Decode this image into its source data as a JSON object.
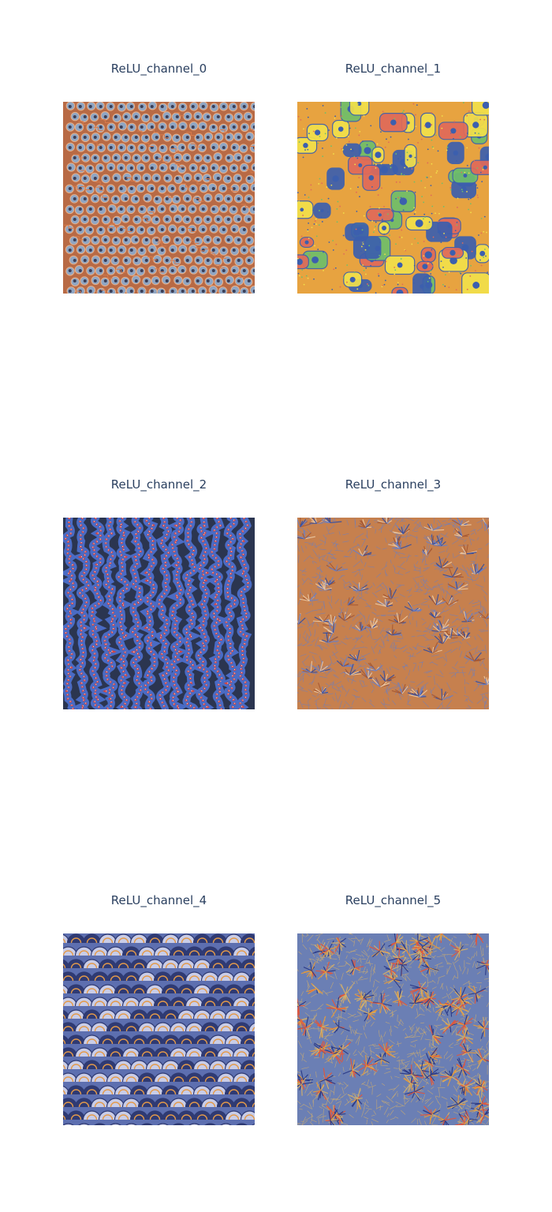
{
  "figure": {
    "panels": [
      {
        "title": "ReLU_channel_0",
        "image": "feature-visualization of ReLU channel 0: rows of blue-grey dotted circles on a rust-orange background with maze-like lines",
        "palette": {
          "base": "#b86a45",
          "a": "#8fa6c4",
          "b": "#3b3f58",
          "c": "#e7b08a",
          "d": "#d97a4a"
        }
      },
      {
        "title": "ReLU_channel_1",
        "image": "feature-visualization of ReLU channel 1: colourful yellow, orange, blue and green cell-like clusters with small spiky blobs",
        "palette": {
          "base": "#e7a340",
          "a": "#f2e04a",
          "b": "#3c5fae",
          "c": "#e06a5a",
          "d": "#6fbf6a"
        }
      },
      {
        "title": "ReLU_channel_2",
        "image": "feature-visualization of ReLU channel 2: wavy worm-like blue and red striped ridges on dark background",
        "palette": {
          "base": "#2b3550",
          "a": "#4a6bc4",
          "b": "#d8433c",
          "c": "#e9eef8",
          "d": "#7f93c8"
        }
      },
      {
        "title": "ReLU_channel_3",
        "image": "feature-visualization of ReLU channel 3: dense orange hair-like strands with blue feathery fan shapes",
        "palette": {
          "base": "#c6804e",
          "a": "#3b4f9a",
          "b": "#e9c49e",
          "c": "#6d7fc0",
          "d": "#a85a34"
        }
      },
      {
        "title": "ReLU_channel_4",
        "image": "feature-visualization of ReLU channel 4: overlapping blue and grey shell-like arcs with orange fibrous fills",
        "palette": {
          "base": "#5d6fb0",
          "a": "#c9cde8",
          "b": "#e39a4a",
          "c": "#2f3a73",
          "d": "#d6703c"
        }
      },
      {
        "title": "ReLU_channel_5",
        "image": "feature-visualization of ReLU channel 5: star-burst orange and blue spiky rays on a blue-grey background",
        "palette": {
          "base": "#6b7fb4",
          "a": "#e59a3a",
          "b": "#2c3a86",
          "c": "#d4b06a",
          "d": "#e2563a"
        }
      }
    ]
  }
}
